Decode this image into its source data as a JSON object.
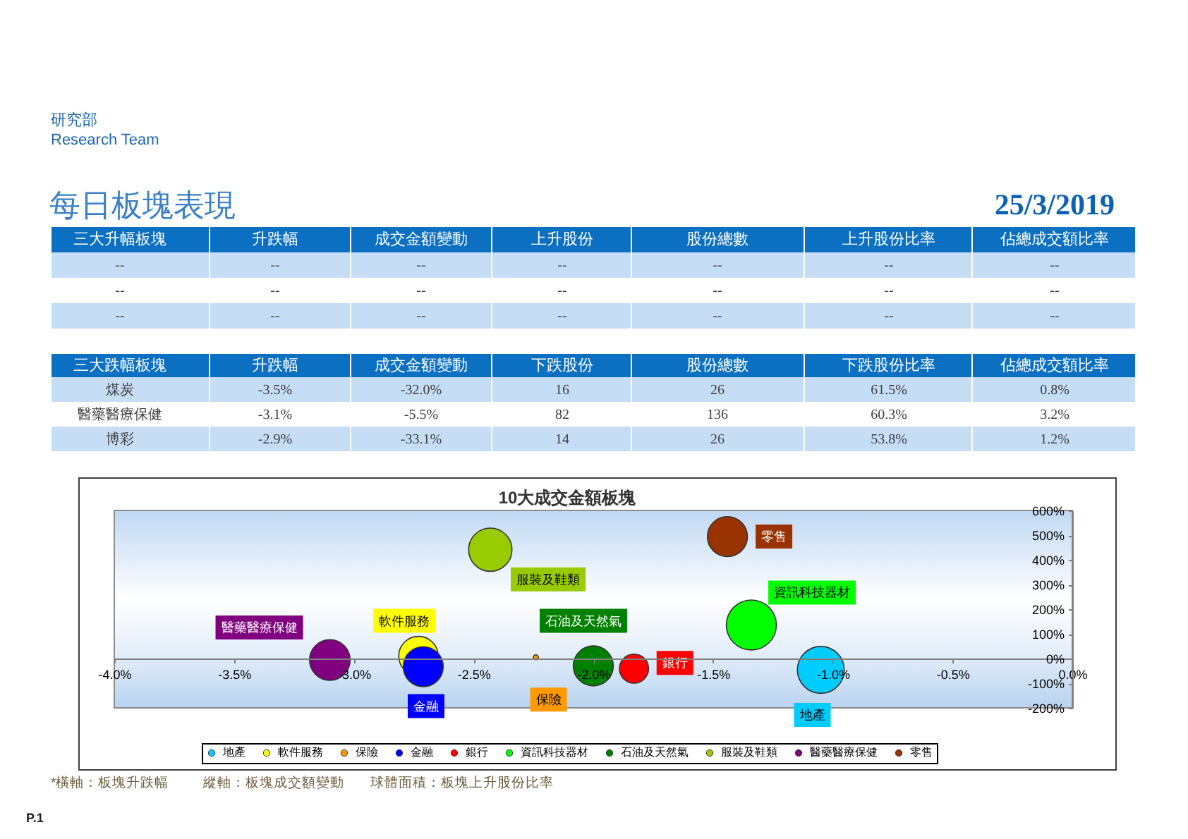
{
  "chart_data": [
    {
      "type": "other",
      "title": "每日板塊表現",
      "subtitle": "25/3/2019",
      "annotations": [
        "研究部",
        "Research Team"
      ],
      "categories": [
        "三大升幅板塊",
        "升跌幅",
        "成交金額變動",
        "上升股份",
        "股份總數",
        "上升股份比率",
        "佔總成交額比率"
      ],
      "cell_labels": [
        [
          "--",
          "--",
          "--",
          "--",
          "--",
          "--",
          "--"
        ],
        [
          "--",
          "--",
          "--",
          "--",
          "--",
          "--",
          "--"
        ],
        [
          "--",
          "--",
          "--",
          "--",
          "--",
          "--",
          "--"
        ]
      ]
    },
    {
      "type": "other",
      "categories": [
        "三大跌幅板塊",
        "升跌幅",
        "成交金額變動",
        "下跌股份",
        "股份總數",
        "下跌股份比率",
        "佔總成交額比率"
      ],
      "cell_labels": [
        [
          "煤炭",
          "-3.5%",
          "-32.0%",
          "16",
          "26",
          "61.5%",
          "0.8%"
        ],
        [
          "醫藥醫療保健",
          "-3.1%",
          "-5.5%",
          "82",
          "136",
          "60.3%",
          "3.2%"
        ],
        [
          "博彩",
          "-2.9%",
          "-33.1%",
          "14",
          "26",
          "53.8%",
          "1.2%"
        ]
      ]
    },
    {
      "type": "bubble",
      "title": "10大成交金額板塊",
      "series": [
        {
          "name": "地產",
          "color": "#00ccff",
          "x": [
            -1.05
          ],
          "values": [
            -46
          ],
          "sizes": [
            0.88
          ]
        },
        {
          "name": "軟件服務",
          "color": "#ffff00",
          "x": [
            -2.73
          ],
          "values": [
            10
          ],
          "sizes": [
            0.62
          ]
        },
        {
          "name": "保險",
          "color": "#ff9900",
          "x": [
            -2.24
          ],
          "values": [
            5
          ],
          "sizes": [
            0.01
          ]
        },
        {
          "name": "金融",
          "color": "#0000ff",
          "x": [
            -2.71
          ],
          "values": [
            -33
          ],
          "sizes": [
            0.64
          ]
        },
        {
          "name": "銀行",
          "color": "#ff0000",
          "x": [
            -1.83
          ],
          "values": [
            -41
          ],
          "sizes": [
            0.34
          ]
        },
        {
          "name": "資訊科技器材",
          "color": "#00ff00",
          "x": [
            -1.34
          ],
          "values": [
            136
          ],
          "sizes": [
            1
          ]
        },
        {
          "name": "石油及天然氣",
          "color": "#008000",
          "x": [
            -2.0
          ],
          "values": [
            -30
          ],
          "sizes": [
            0.64
          ]
        },
        {
          "name": "服裝及鞋類",
          "color": "#99cc00",
          "x": [
            -2.43
          ],
          "values": [
            441
          ],
          "sizes": [
            0.75
          ]
        },
        {
          "name": "醫藥醫療保健",
          "color": "#800080",
          "x": [
            -3.1
          ],
          "values": [
            -6
          ],
          "sizes": [
            0.66
          ]
        },
        {
          "name": "零售",
          "color": "#993300",
          "x": [
            -1.44
          ],
          "values": [
            494
          ],
          "sizes": [
            0.64
          ]
        }
      ],
      "xlim": [
        -4,
        0
      ],
      "xticks": [
        {
          "value": -4,
          "label": "-4.0%"
        },
        {
          "value": -3.5,
          "label": "-3.5%"
        },
        {
          "value": -3,
          "label": "-3.0%"
        },
        {
          "value": -2.5,
          "label": "-2.5%"
        },
        {
          "value": -2,
          "label": "-2.0%"
        },
        {
          "value": -1.5,
          "label": "-1.5%"
        },
        {
          "value": -1,
          "label": "-1.0%"
        },
        {
          "value": -0.5,
          "label": "-0.5%"
        },
        {
          "value": 0,
          "label": "0.0%"
        }
      ],
      "ylim": [
        -200,
        600
      ],
      "yticks": [
        {
          "value": -200,
          "label": "-200%"
        },
        {
          "value": -100,
          "label": "-100%"
        },
        {
          "value": 0,
          "label": "0%"
        },
        {
          "value": 100,
          "label": "100%"
        },
        {
          "value": 200,
          "label": "200%"
        },
        {
          "value": 300,
          "label": "300%"
        },
        {
          "value": 400,
          "label": "400%"
        },
        {
          "value": 500,
          "label": "500%"
        },
        {
          "value": 600,
          "label": "600%"
        }
      ],
      "legend": "bottom",
      "grid": false,
      "annotations": [
        "*橫軸：板塊升跌幅",
        "縱軸：板塊成交額變動",
        "球體面積：板塊上升股份比率",
        "P.1"
      ]
    }
  ]
}
